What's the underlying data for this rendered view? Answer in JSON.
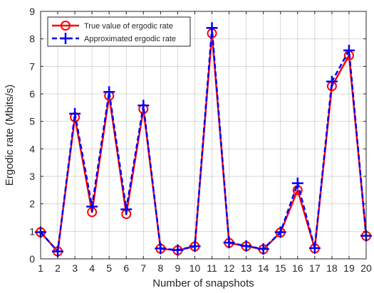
{
  "chart_data": {
    "type": "line",
    "xlabel": "Number of snapshots",
    "ylabel": "Ergodic rate (Mbits/s)",
    "x": [
      1,
      2,
      3,
      4,
      5,
      6,
      7,
      8,
      9,
      10,
      11,
      12,
      13,
      14,
      15,
      16,
      17,
      18,
      19,
      20
    ],
    "xlim": [
      1,
      20
    ],
    "ylim": [
      0,
      9
    ],
    "xticks": [
      "1",
      "2",
      "3",
      "4",
      "5",
      "6",
      "7",
      "8",
      "9",
      "10",
      "11",
      "12",
      "13",
      "14",
      "15",
      "16",
      "17",
      "18",
      "19",
      "20"
    ],
    "yticks": [
      "0",
      "1",
      "2",
      "3",
      "4",
      "5",
      "6",
      "7",
      "8",
      "9"
    ],
    "grid": true,
    "legend_position": "top-left",
    "series": [
      {
        "name": "True value of ergodic rate",
        "color": "#ff0000",
        "line_style": "solid",
        "marker": "circle",
        "values": [
          0.97,
          0.27,
          5.15,
          1.7,
          5.93,
          1.63,
          5.45,
          0.37,
          0.31,
          0.45,
          8.2,
          0.58,
          0.46,
          0.35,
          0.96,
          2.5,
          0.38,
          6.28,
          7.4,
          0.83
        ]
      },
      {
        "name": "Approximated ergodic rate",
        "color": "#0000ff",
        "line_style": "dashed",
        "marker": "plus",
        "values": [
          0.97,
          0.27,
          5.28,
          1.9,
          6.07,
          1.8,
          5.58,
          0.38,
          0.32,
          0.46,
          8.4,
          0.59,
          0.47,
          0.36,
          0.97,
          2.75,
          0.39,
          6.45,
          7.58,
          0.84
        ]
      }
    ]
  }
}
